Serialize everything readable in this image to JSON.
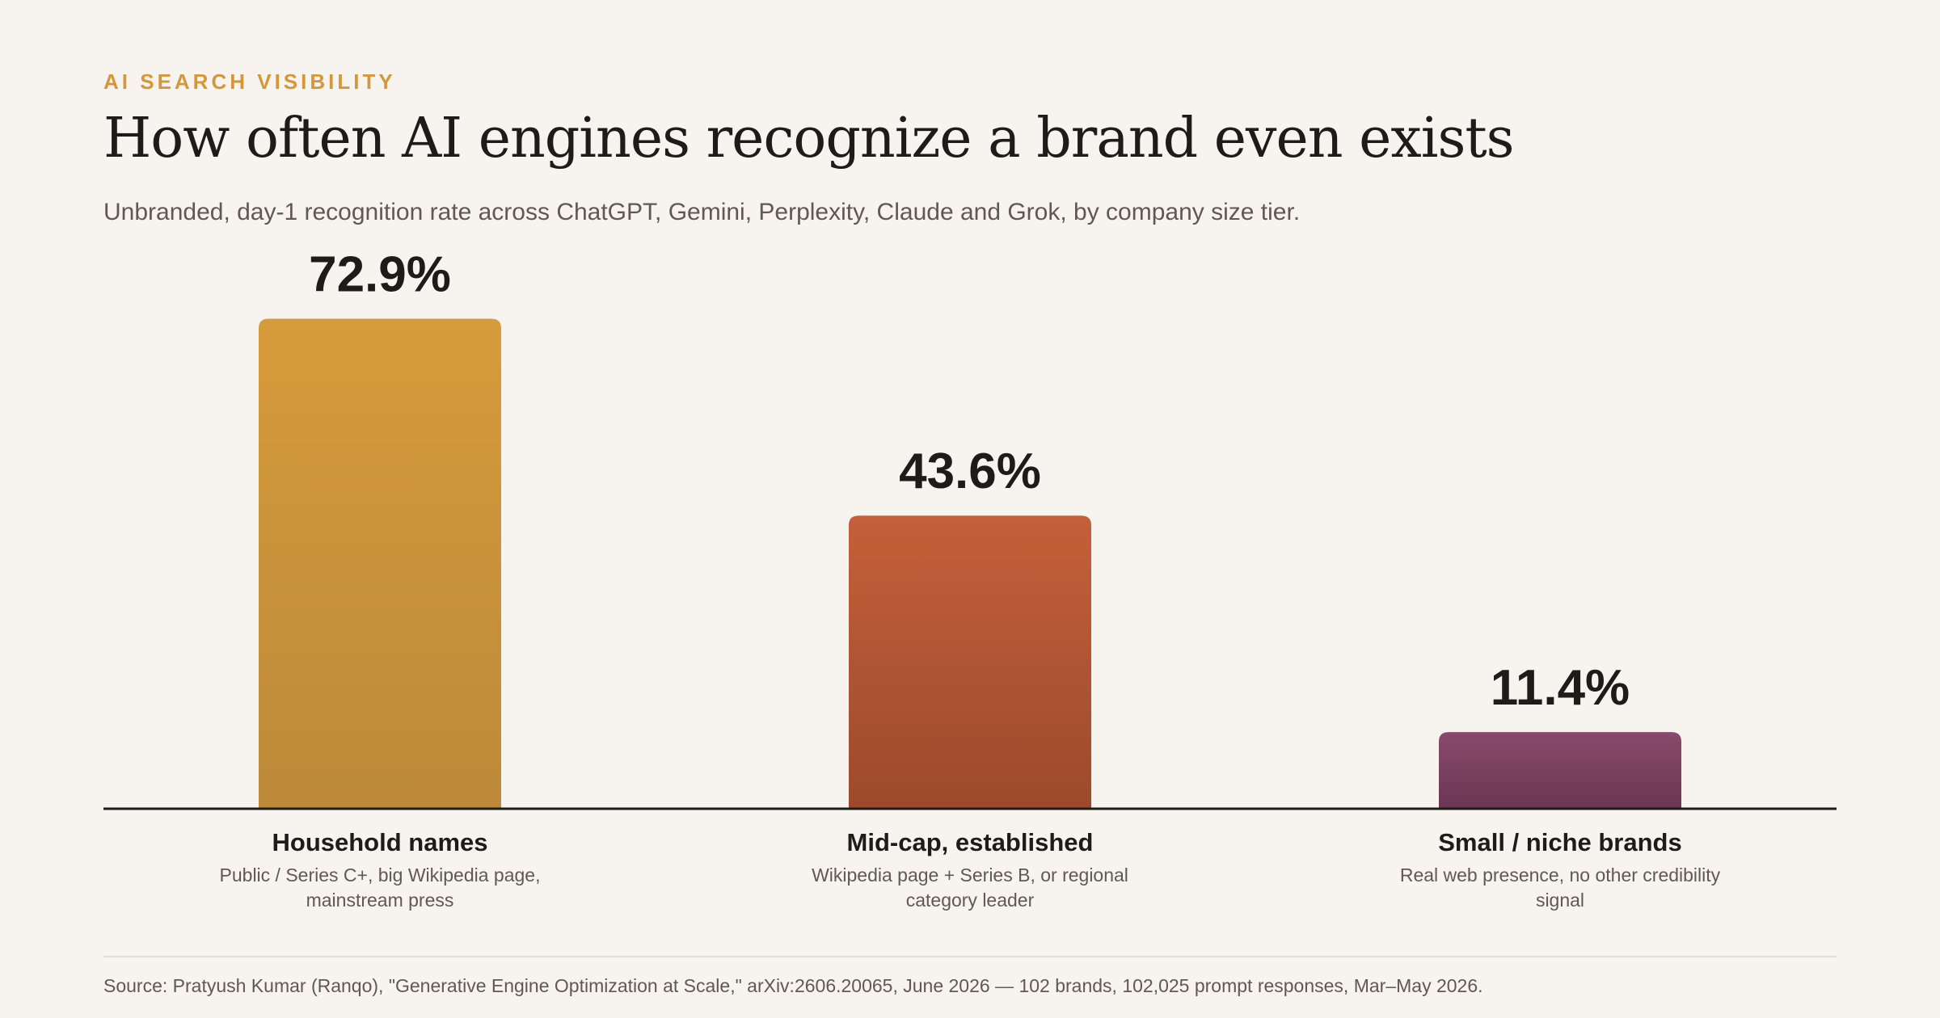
{
  "header": {
    "eyebrow": "AI SEARCH VISIBILITY",
    "title": "How often AI engines recognize a brand even exists",
    "subtitle": "Unbranded, day-1 recognition rate across ChatGPT, Gemini, Perplexity, Claude and Grok, by company size tier."
  },
  "chart_data": {
    "type": "bar",
    "title": "How often AI engines recognize a brand even exists",
    "subtitle": "Unbranded, day-1 recognition rate across ChatGPT, Gemini, Perplexity, Claude and Grok, by company size tier.",
    "categories": [
      "Household names",
      "Mid-cap, established",
      "Small / niche brands"
    ],
    "descriptions": [
      [
        "Public / Series C+, big Wikipedia page,",
        "mainstream press"
      ],
      [
        "Wikipedia page + Series B, or regional",
        "category leader"
      ],
      [
        "Real web presence, no other credibility",
        "signal"
      ]
    ],
    "values": [
      72.9,
      43.6,
      11.4
    ],
    "value_labels": [
      "72.9%",
      "43.6%",
      "11.4%"
    ],
    "unit": "%",
    "ylim": [
      0,
      100
    ],
    "grid": false,
    "legend": "none",
    "colors": [
      [
        "#d69b3b",
        "#bd8a3a"
      ],
      [
        "#c4603a",
        "#9c4a2c"
      ],
      [
        "#8a4a6c",
        "#6a3653"
      ]
    ],
    "axis_color": "#1e1c19"
  },
  "footer": {
    "source": "Source: Pratyush Kumar (Ranqo), \"Generative Engine Optimization at Scale,\" arXiv:2606.20065, June 2026 — 102 brands, 102,025 prompt responses, Mar–May 2026."
  }
}
